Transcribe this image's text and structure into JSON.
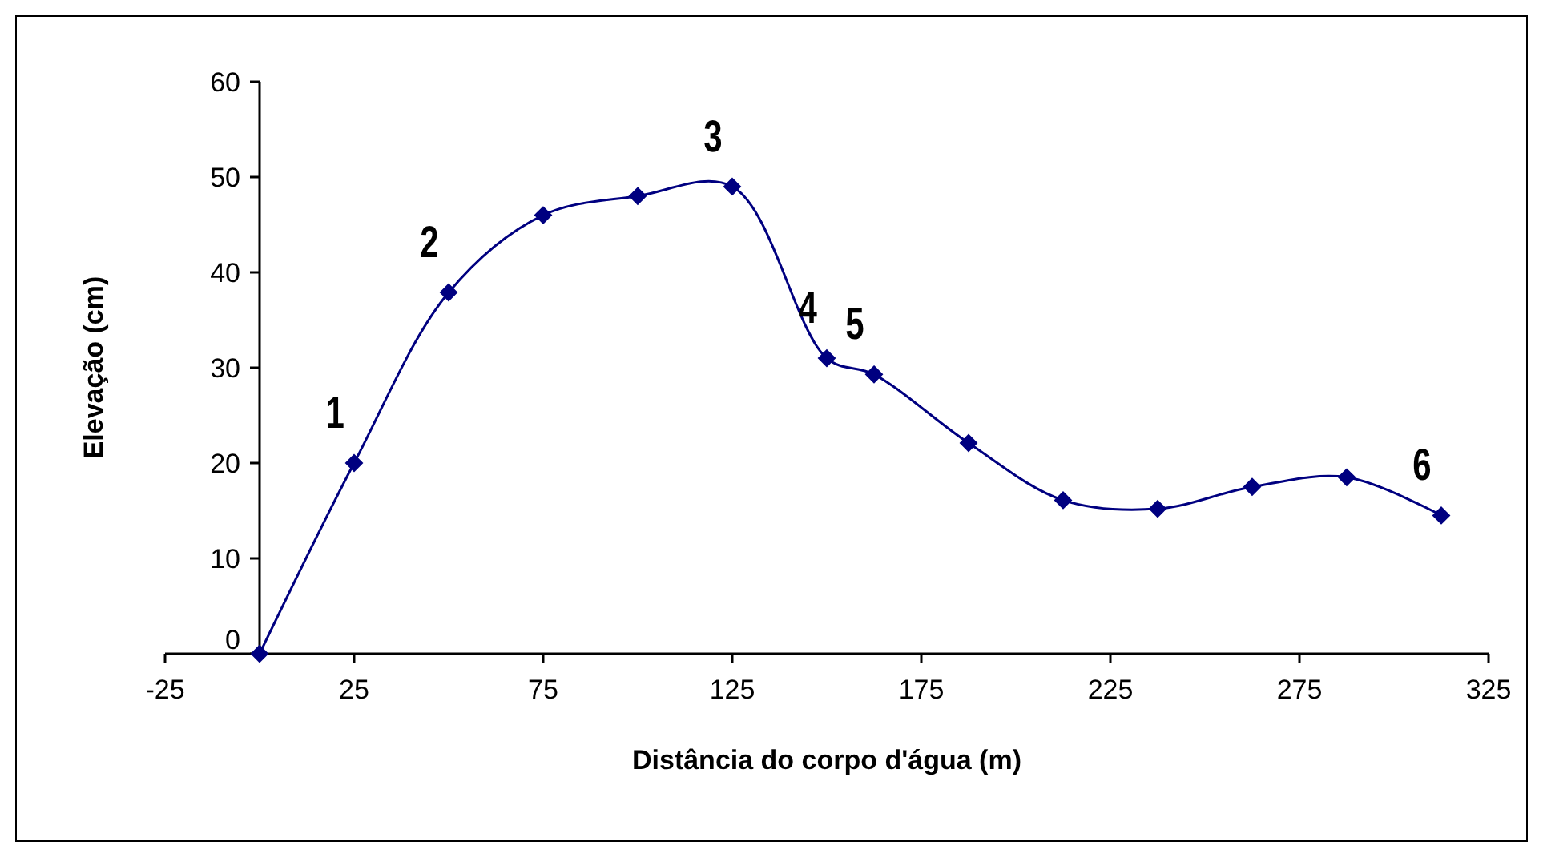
{
  "chart_data": {
    "type": "line",
    "xlabel": "Distância do corpo d'água (m)",
    "ylabel": "Elevação (cm)",
    "x": [
      0,
      25,
      50,
      75,
      100,
      125,
      150,
      162.5,
      187.5,
      212.5,
      237.5,
      262.5,
      287.5,
      312.5
    ],
    "series": [
      {
        "color": "#000080",
        "values": [
          0,
          20,
          37.9,
          46,
          48,
          49,
          31,
          29.3,
          22.1,
          16.1,
          15.2,
          17.5,
          18.5,
          14.5
        ]
      }
    ],
    "xlim": [
      -25,
      325
    ],
    "xticks": [
      -25,
      25,
      75,
      125,
      175,
      225,
      275,
      325
    ],
    "ylim": [
      0,
      60
    ],
    "yticks": [
      0,
      10,
      20,
      30,
      40,
      50,
      60
    ],
    "marker": "diamond",
    "line_style": "solid",
    "grid": false,
    "annotations": [
      {
        "text": "1",
        "x": 25,
        "y": 20
      },
      {
        "text": "2",
        "x": 50,
        "y": 37.9
      },
      {
        "text": "3",
        "x": 125,
        "y": 49
      },
      {
        "text": "4",
        "x": 150,
        "y": 31
      },
      {
        "text": "5",
        "x": 162.5,
        "y": 29.3
      },
      {
        "text": "6",
        "x": 312.5,
        "y": 14.5
      }
    ]
  }
}
